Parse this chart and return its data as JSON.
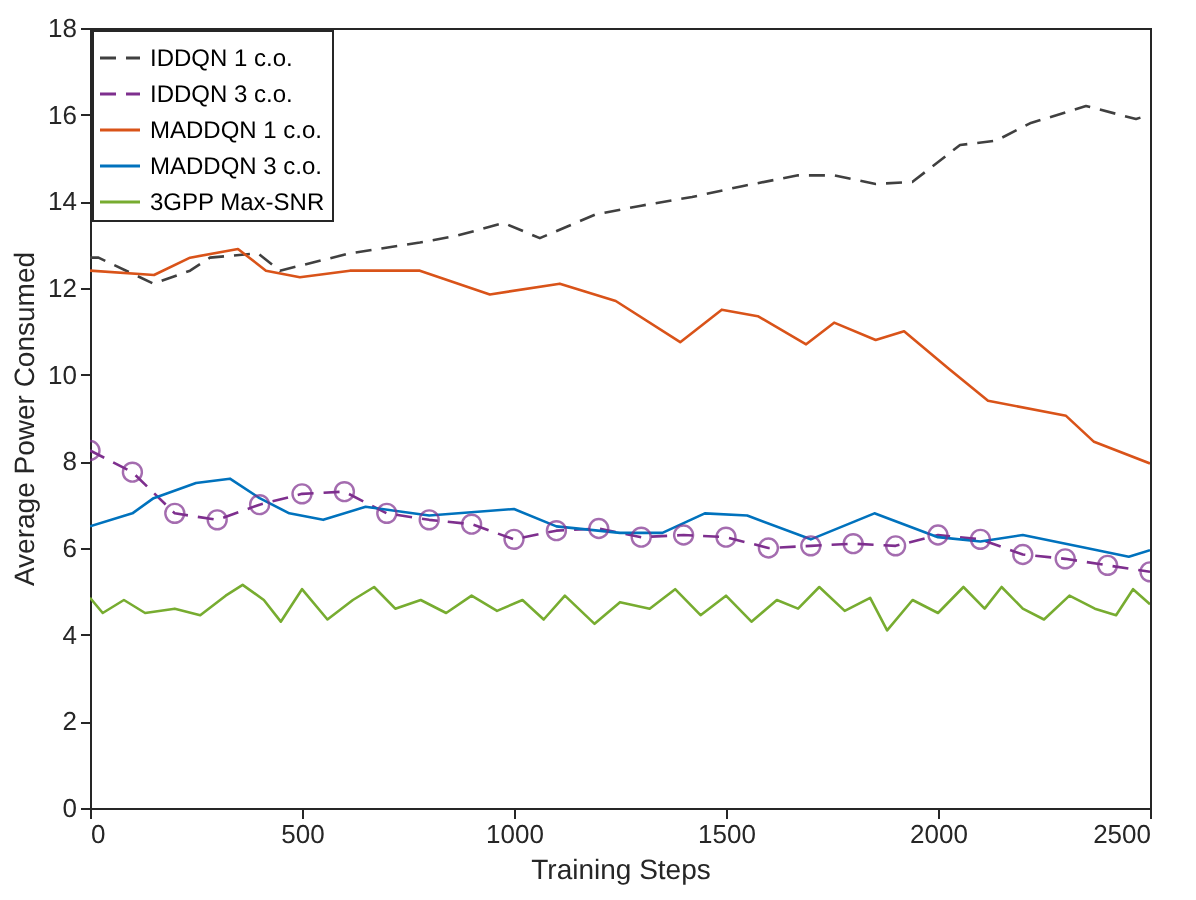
{
  "chart_data": {
    "type": "line",
    "xlabel": "Training Steps",
    "ylabel": "Average Power Consumed",
    "xlim": [
      0,
      2500
    ],
    "ylim": [
      0,
      18
    ],
    "xticks": [
      0,
      500,
      1000,
      1500,
      2000,
      2500
    ],
    "yticks": [
      0,
      2,
      4,
      6,
      8,
      10,
      12,
      14,
      16,
      18
    ],
    "grid": false,
    "legend": "top left",
    "series": [
      {
        "name": "IDDQN 1 c.o.",
        "color": "#404040",
        "line_style": "dashed",
        "marker": "none",
        "x": [
          0,
          20,
          150,
          236,
          283,
          396,
          448,
          613,
          778,
          863,
          976,
          1061,
          1193,
          1300,
          1420,
          1538,
          1670,
          1755,
          1853,
          1940,
          2052,
          2137,
          2217,
          2349,
          2467,
          2500
        ],
        "values": [
          12.7,
          12.7,
          12.1,
          12.4,
          12.7,
          12.8,
          12.4,
          12.8,
          13.05,
          13.2,
          13.5,
          13.15,
          13.7,
          13.9,
          14.1,
          14.35,
          14.6,
          14.6,
          14.4,
          14.45,
          15.3,
          15.4,
          15.8,
          16.2,
          15.9,
          16.0
        ]
      },
      {
        "name": "IDDQN 3 c.o.",
        "color": "#7e2f8e",
        "line_style": "dashed",
        "marker": "circle",
        "x": [
          0,
          100,
          200,
          300,
          400,
          500,
          600,
          700,
          800,
          900,
          1000,
          1100,
          1200,
          1300,
          1400,
          1500,
          1600,
          1700,
          1800,
          1900,
          2000,
          2100,
          2200,
          2300,
          2400,
          2500
        ],
        "values": [
          8.25,
          7.75,
          6.8,
          6.65,
          7.0,
          7.25,
          7.3,
          6.8,
          6.65,
          6.55,
          6.2,
          6.4,
          6.45,
          6.25,
          6.3,
          6.25,
          6.0,
          6.05,
          6.1,
          6.05,
          6.3,
          6.2,
          5.85,
          5.75,
          5.6,
          5.45
        ]
      },
      {
        "name": "MADDQN 1 c.o.",
        "color": "#d95319",
        "line_style": "solid",
        "marker": "none",
        "x": [
          0,
          151,
          236,
          349,
          415,
          495,
          613,
          778,
          943,
          1108,
          1240,
          1392,
          1490,
          1575,
          1689,
          1755,
          1853,
          1920,
          2024,
          2118,
          2302,
          2368,
          2500
        ],
        "values": [
          12.4,
          12.3,
          12.7,
          12.9,
          12.4,
          12.25,
          12.4,
          12.4,
          11.85,
          12.1,
          11.7,
          10.75,
          11.5,
          11.35,
          10.7,
          11.2,
          10.8,
          11.0,
          10.15,
          9.4,
          9.05,
          8.45,
          7.95
        ]
      },
      {
        "name": "MADDQN 3 c.o.",
        "color": "#0072bd",
        "line_style": "solid",
        "marker": "none",
        "x": [
          0,
          100,
          150,
          250,
          330,
          400,
          470,
          550,
          650,
          800,
          1000,
          1100,
          1250,
          1350,
          1450,
          1550,
          1700,
          1850,
          2000,
          2100,
          2200,
          2350,
          2450,
          2500
        ],
        "values": [
          6.5,
          6.8,
          7.15,
          7.5,
          7.6,
          7.15,
          6.8,
          6.65,
          6.95,
          6.75,
          6.9,
          6.5,
          6.35,
          6.35,
          6.8,
          6.75,
          6.2,
          6.8,
          6.25,
          6.15,
          6.3,
          6.0,
          5.8,
          5.95
        ]
      },
      {
        "name": "3GPP Max-SNR",
        "color": "#77ac30",
        "line_style": "solid",
        "marker": "none",
        "x": [
          0,
          30,
          80,
          130,
          200,
          260,
          320,
          360,
          410,
          450,
          500,
          560,
          620,
          670,
          720,
          780,
          840,
          900,
          960,
          1020,
          1070,
          1120,
          1190,
          1250,
          1320,
          1380,
          1440,
          1500,
          1560,
          1620,
          1670,
          1720,
          1780,
          1840,
          1880,
          1940,
          2000,
          2060,
          2110,
          2150,
          2200,
          2250,
          2310,
          2370,
          2420,
          2460,
          2500
        ],
        "values": [
          4.85,
          4.5,
          4.8,
          4.5,
          4.6,
          4.45,
          4.9,
          5.15,
          4.8,
          4.3,
          5.05,
          4.35,
          4.8,
          5.1,
          4.6,
          4.8,
          4.5,
          4.9,
          4.55,
          4.8,
          4.35,
          4.9,
          4.25,
          4.75,
          4.6,
          5.05,
          4.45,
          4.9,
          4.3,
          4.8,
          4.6,
          5.1,
          4.55,
          4.85,
          4.1,
          4.8,
          4.5,
          5.1,
          4.6,
          5.1,
          4.6,
          4.35,
          4.9,
          4.6,
          4.45,
          5.05,
          4.7
        ]
      }
    ]
  }
}
